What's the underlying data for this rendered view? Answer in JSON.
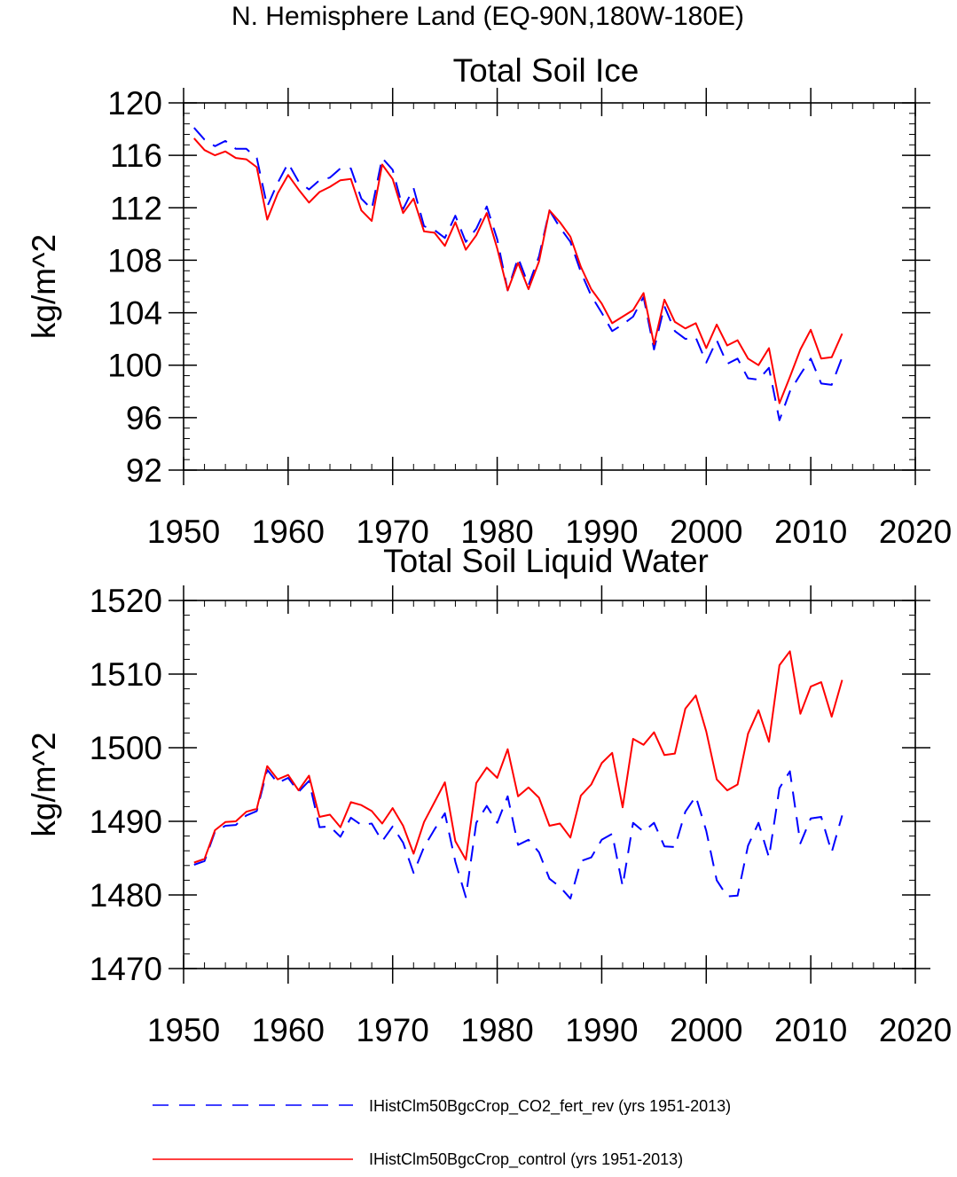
{
  "page_title": "N. Hemisphere Land (EQ-90N,180W-180E)",
  "legend": [
    {
      "label": "IHistClm50BgcCrop_CO2_fert_rev (yrs 1951-2013)",
      "color": "#0000ff",
      "style": "dashed"
    },
    {
      "label": "IHistClm50BgcCrop_control (yrs 1951-2013)",
      "color": "#ff0000",
      "style": "solid"
    }
  ],
  "chart_data": [
    {
      "type": "line",
      "title": "Total Soil Ice",
      "xlabel": "",
      "ylabel": "kg/m^2",
      "xlim": [
        1950,
        2020
      ],
      "ylim": [
        92,
        120
      ],
      "xticks": [
        1950,
        1960,
        1970,
        1980,
        1990,
        2000,
        2010,
        2020
      ],
      "yticks": [
        92,
        96,
        100,
        104,
        108,
        112,
        116,
        120
      ],
      "x": [
        1951,
        1952,
        1953,
        1954,
        1955,
        1956,
        1957,
        1958,
        1959,
        1960,
        1961,
        1962,
        1963,
        1964,
        1965,
        1966,
        1967,
        1968,
        1969,
        1970,
        1971,
        1972,
        1973,
        1974,
        1975,
        1976,
        1977,
        1978,
        1979,
        1980,
        1981,
        1982,
        1983,
        1984,
        1985,
        1986,
        1987,
        1988,
        1989,
        1990,
        1991,
        1992,
        1993,
        1994,
        1995,
        1996,
        1997,
        1998,
        1999,
        2000,
        2001,
        2002,
        2003,
        2004,
        2005,
        2006,
        2007,
        2008,
        2009,
        2010,
        2011,
        2012,
        2013
      ],
      "series": [
        {
          "name": "IHistClm50BgcCrop_CO2_fert_rev (yrs 1951-2013)",
          "color": "#0000ff",
          "dash": true,
          "values": [
            118.1,
            117.2,
            116.7,
            117.1,
            116.5,
            116.5,
            115.8,
            112.1,
            113.9,
            115.4,
            114.0,
            113.4,
            114.1,
            114.3,
            115.0,
            115.0,
            112.7,
            111.9,
            115.8,
            114.9,
            111.9,
            113.5,
            110.6,
            110.3,
            109.7,
            111.4,
            109.4,
            110.4,
            112.1,
            109.6,
            105.7,
            108.2,
            106.1,
            108.3,
            111.8,
            110.5,
            109.4,
            107.1,
            105.3,
            104.0,
            102.6,
            103.1,
            103.7,
            105.2,
            101.2,
            104.5,
            102.6,
            102.0,
            102.1,
            100.2,
            101.9,
            100.1,
            100.5,
            99.0,
            98.9,
            99.8,
            95.8,
            98.0,
            99.3,
            100.5,
            98.6,
            98.5,
            100.6
          ]
        },
        {
          "name": "IHistClm50BgcCrop_control (yrs 1951-2013)",
          "color": "#ff0000",
          "dash": false,
          "values": [
            117.3,
            116.4,
            116.0,
            116.3,
            115.8,
            115.7,
            115.1,
            111.1,
            113.1,
            114.5,
            113.4,
            112.4,
            113.2,
            113.6,
            114.1,
            114.2,
            111.8,
            111.0,
            115.3,
            114.2,
            111.6,
            112.7,
            110.2,
            110.1,
            109.1,
            110.9,
            108.8,
            109.9,
            111.6,
            108.9,
            105.7,
            107.8,
            105.8,
            107.9,
            111.8,
            110.9,
            109.8,
            107.5,
            105.8,
            104.7,
            103.2,
            103.7,
            104.2,
            105.5,
            101.6,
            105.0,
            103.3,
            102.8,
            103.2,
            101.3,
            103.1,
            101.5,
            101.9,
            100.5,
            100.0,
            101.3,
            97.1,
            99.1,
            101.2,
            102.7,
            100.5,
            100.6,
            102.4
          ]
        }
      ]
    },
    {
      "type": "line",
      "title": "Total Soil Liquid Water",
      "xlabel": "",
      "ylabel": "kg/m^2",
      "xlim": [
        1950,
        2020
      ],
      "ylim": [
        1470,
        1520
      ],
      "xticks": [
        1950,
        1960,
        1970,
        1980,
        1990,
        2000,
        2010,
        2020
      ],
      "yticks": [
        1470,
        1480,
        1490,
        1500,
        1510,
        1520
      ],
      "x": [
        1951,
        1952,
        1953,
        1954,
        1955,
        1956,
        1957,
        1958,
        1959,
        1960,
        1961,
        1962,
        1963,
        1964,
        1965,
        1966,
        1967,
        1968,
        1969,
        1970,
        1971,
        1972,
        1973,
        1974,
        1975,
        1976,
        1977,
        1978,
        1979,
        1980,
        1981,
        1982,
        1983,
        1984,
        1985,
        1986,
        1987,
        1988,
        1989,
        1990,
        1991,
        1992,
        1993,
        1994,
        1995,
        1996,
        1997,
        1998,
        1999,
        2000,
        2001,
        2002,
        2003,
        2004,
        2005,
        2006,
        2007,
        2008,
        2009,
        2010,
        2011,
        2012,
        2013
      ],
      "series": [
        {
          "name": "IHistClm50BgcCrop_CO2_fert_rev (yrs 1951-2013)",
          "color": "#0000ff",
          "dash": true,
          "values": [
            1484.1,
            1484.6,
            1488.6,
            1489.4,
            1489.5,
            1490.8,
            1491.4,
            1497.0,
            1495.2,
            1495.9,
            1494.0,
            1495.5,
            1489.2,
            1489.3,
            1487.9,
            1490.5,
            1489.5,
            1489.7,
            1487.3,
            1489.3,
            1487.1,
            1483.0,
            1486.5,
            1488.9,
            1491.1,
            1484.5,
            1479.7,
            1489.8,
            1492.1,
            1489.8,
            1493.4,
            1486.8,
            1487.5,
            1485.8,
            1482.2,
            1481.1,
            1479.5,
            1484.6,
            1485.1,
            1487.5,
            1488.3,
            1481.2,
            1489.8,
            1488.6,
            1489.8,
            1486.6,
            1486.5,
            1491.3,
            1493.4,
            1488.7,
            1482.0,
            1479.8,
            1479.9,
            1486.7,
            1489.8,
            1485.1,
            1494.5,
            1496.8,
            1487.0,
            1490.4,
            1490.6,
            1485.8,
            1490.8
          ]
        },
        {
          "name": "IHistClm50BgcCrop_control (yrs 1951-2013)",
          "color": "#ff0000",
          "dash": false,
          "values": [
            1484.4,
            1484.9,
            1488.8,
            1489.9,
            1490.0,
            1491.3,
            1491.7,
            1497.5,
            1495.7,
            1496.3,
            1494.2,
            1496.2,
            1490.6,
            1490.9,
            1489.2,
            1492.6,
            1492.2,
            1491.4,
            1489.7,
            1491.8,
            1489.4,
            1485.6,
            1489.9,
            1492.6,
            1495.3,
            1487.3,
            1484.8,
            1495.2,
            1497.3,
            1495.9,
            1499.8,
            1493.4,
            1494.6,
            1493.2,
            1489.4,
            1489.7,
            1487.8,
            1493.5,
            1495.0,
            1497.9,
            1499.3,
            1491.9,
            1501.2,
            1500.4,
            1502.1,
            1499.0,
            1499.2,
            1505.3,
            1507.1,
            1502.2,
            1495.7,
            1494.2,
            1495.0,
            1501.9,
            1505.1,
            1500.8,
            1511.2,
            1513.1,
            1504.6,
            1508.3,
            1508.9,
            1504.2,
            1509.2
          ]
        }
      ]
    }
  ]
}
